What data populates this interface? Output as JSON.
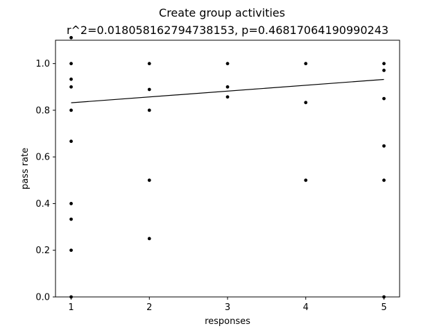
{
  "chart_data": {
    "type": "scatter",
    "title": "Create group activities",
    "subtitle": "r^2=0.018058162794738153, p=0.46817064190990243",
    "xlabel": "responses",
    "ylabel": "pass rate",
    "xlim": [
      0.8,
      5.2
    ],
    "ylim": [
      0.0,
      1.1
    ],
    "xticks": [
      "1",
      "2",
      "3",
      "4",
      "5"
    ],
    "xtick_values": [
      1,
      2,
      3,
      4,
      5
    ],
    "yticks": [
      "0.0",
      "0.2",
      "0.4",
      "0.6",
      "0.8",
      "1.0"
    ],
    "ytick_values": [
      0.0,
      0.2,
      0.4,
      0.6,
      0.8,
      1.0
    ],
    "grid": false,
    "legend": "none",
    "point_color": "#000000",
    "line_color": "#000000",
    "series": [
      {
        "type": "scatter",
        "points": [
          [
            1,
            1.111
          ],
          [
            1,
            1.0
          ],
          [
            1,
            0.933
          ],
          [
            1,
            0.9
          ],
          [
            1,
            0.8
          ],
          [
            1,
            0.667
          ],
          [
            1,
            0.4
          ],
          [
            1,
            0.333
          ],
          [
            1,
            0.2
          ],
          [
            1,
            0.0
          ],
          [
            2,
            1.0
          ],
          [
            2,
            0.889
          ],
          [
            2,
            0.8
          ],
          [
            2,
            0.5
          ],
          [
            2,
            0.25
          ],
          [
            3,
            1.0
          ],
          [
            3,
            0.9
          ],
          [
            3,
            0.857
          ],
          [
            4,
            1.0
          ],
          [
            4,
            0.833
          ],
          [
            4,
            0.5
          ],
          [
            5,
            1.0
          ],
          [
            5,
            0.971
          ],
          [
            5,
            0.85
          ],
          [
            5,
            0.647
          ],
          [
            5,
            0.5
          ],
          [
            5,
            0.0
          ]
        ]
      },
      {
        "type": "line",
        "points": [
          [
            1,
            0.832
          ],
          [
            5,
            0.932
          ]
        ]
      }
    ]
  }
}
